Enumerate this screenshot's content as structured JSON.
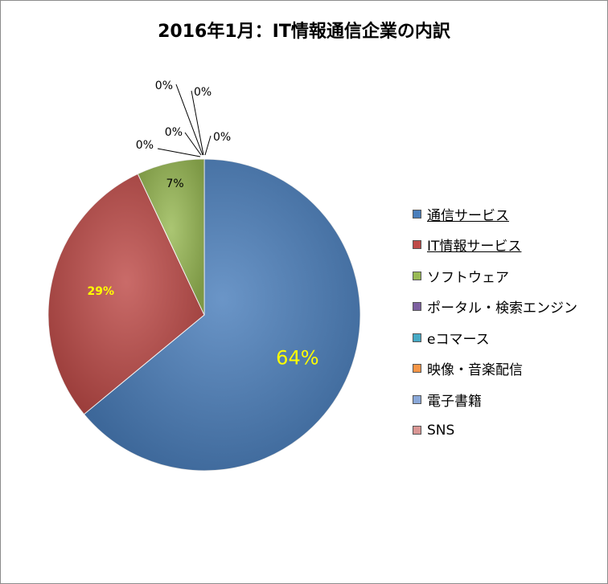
{
  "chart_data": {
    "type": "pie",
    "title": "2016年1月：IT情報通信企業の内訳",
    "slices": [
      {
        "name": "通信サービス",
        "value": 64,
        "label": "64%",
        "color": "#4a7ebb",
        "underlined": true
      },
      {
        "name": "IT情報サービス",
        "value": 29,
        "label": "29%",
        "color": "#be4b48",
        "underlined": true
      },
      {
        "name": "ソフトウェア",
        "value": 7,
        "label": "7%",
        "color": "#98b954",
        "underlined": false
      },
      {
        "name": "ポータル・検索エンジン",
        "value": 0,
        "label": "0%",
        "color": "#7d60a0",
        "underlined": false
      },
      {
        "name": "eコマース",
        "value": 0,
        "label": "0%",
        "color": "#46aac5",
        "underlined": false
      },
      {
        "name": "映像・音楽配信",
        "value": 0,
        "label": "0%",
        "color": "#f69546",
        "underlined": false
      },
      {
        "name": "電子書籍",
        "value": 0,
        "label": "0%",
        "color": "#8aa8d8",
        "underlined": false
      },
      {
        "name": "SNS",
        "value": 0,
        "label": "0%",
        "color": "#d99694",
        "underlined": false
      }
    ],
    "legend_position": "right",
    "label_colors": {
      "large": "#ffff00",
      "small": "#000000"
    }
  }
}
